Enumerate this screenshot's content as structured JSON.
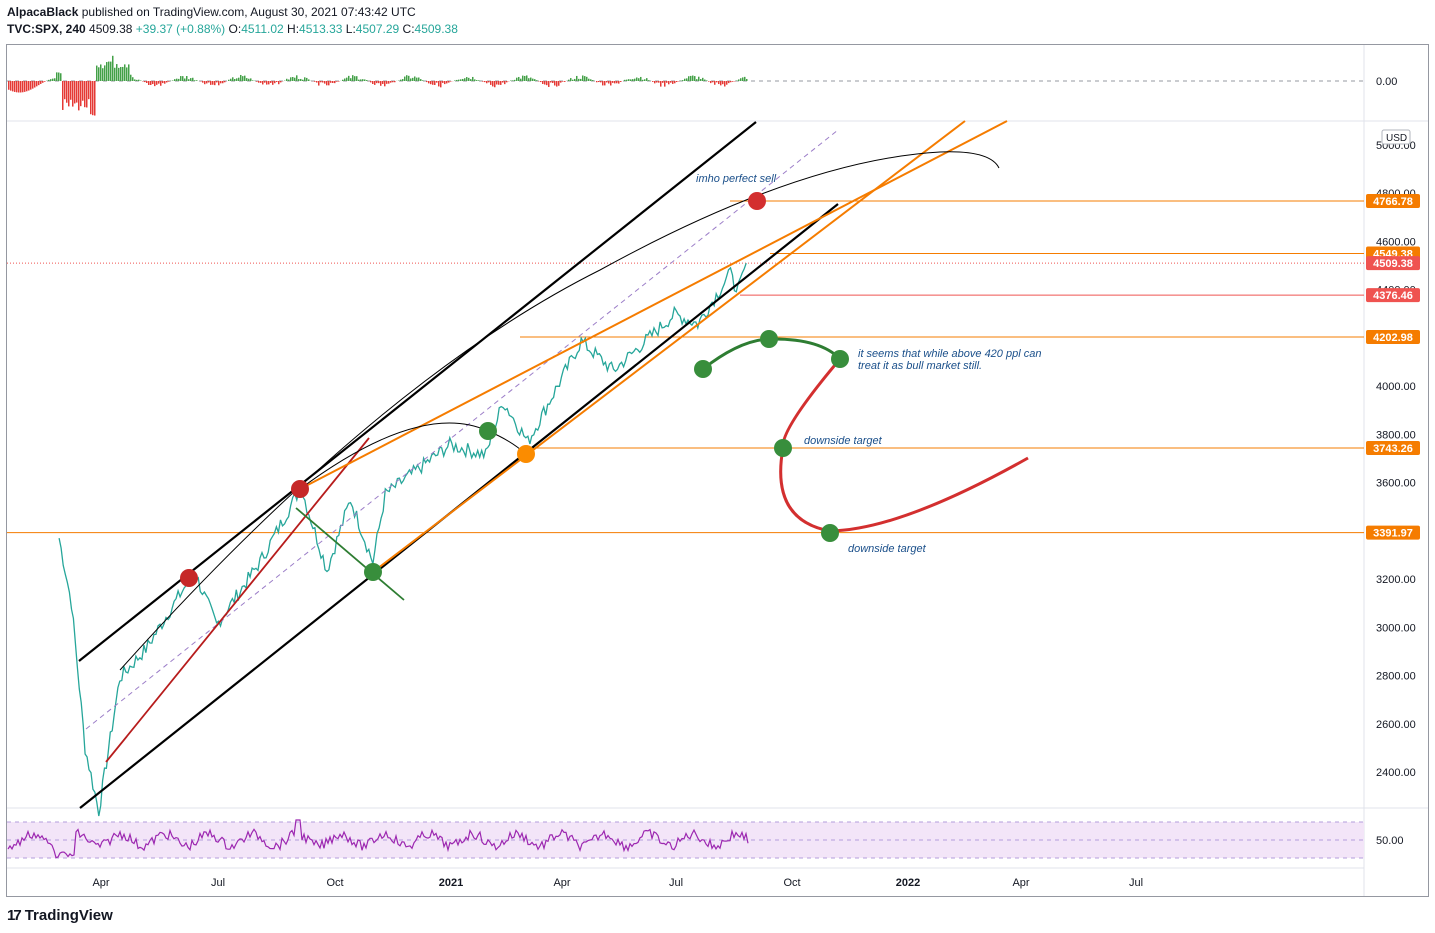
{
  "header": {
    "author": "AlpacaBlack",
    "published_text": "published on TradingView.com, August 30, 2021 07:43:42 UTC",
    "symbol": "TVC:SPX, 240",
    "last": "4509.38",
    "change": "+39.37 (+0.88%)",
    "o_label": "O:",
    "o": "4511.02",
    "h_label": "H:",
    "h": "4513.33",
    "l_label": "L:",
    "l": "4507.29",
    "c_label": "C:",
    "c": "4509.38"
  },
  "footer": {
    "brand": "TradingView",
    "logo_text": "17"
  },
  "chart_data": {
    "type": "line",
    "currency": "USD",
    "y_axis_ticks": [
      "4800.00",
      "4600.00",
      "4400.00",
      "4200.00",
      "4000.00",
      "3800.00",
      "3600.00",
      "3400.00",
      "3200.00",
      "3000.00",
      "2800.00",
      "2600.00",
      "2400.00"
    ],
    "y_axis_top_label": "5000.00",
    "x_axis_ticks": [
      "Apr",
      "Jul",
      "Oct",
      "2021",
      "Apr",
      "Jul",
      "Oct",
      "2022",
      "Apr",
      "Jul"
    ],
    "price_labels": [
      {
        "value": 4766.78,
        "text": "4766.78",
        "color": "#f57c00"
      },
      {
        "value": 4549.38,
        "text": "4549.38",
        "color": "#f57c00"
      },
      {
        "value": 4509.38,
        "text": "4509.38",
        "color": "#ef5350"
      },
      {
        "value": 4376.46,
        "text": "4376.46",
        "color": "#ef5350"
      },
      {
        "value": 4202.98,
        "text": "4202.98",
        "color": "#f57c00"
      },
      {
        "value": 3743.26,
        "text": "3743.26",
        "color": "#f57c00"
      },
      {
        "value": 3391.97,
        "text": "3391.97",
        "color": "#f57c00"
      }
    ],
    "price_series": [
      {
        "t": "2020-02-20",
        "v": 3370
      },
      {
        "t": "2020-03-01",
        "v": 3100
      },
      {
        "t": "2020-03-12",
        "v": 2500
      },
      {
        "t": "2020-03-23",
        "v": 2237
      },
      {
        "t": "2020-04-09",
        "v": 2790
      },
      {
        "t": "2020-04-30",
        "v": 2910
      },
      {
        "t": "2020-06-08",
        "v": 3230
      },
      {
        "t": "2020-06-26",
        "v": 3010
      },
      {
        "t": "2020-07-31",
        "v": 3270
      },
      {
        "t": "2020-09-02",
        "v": 3580
      },
      {
        "t": "2020-09-23",
        "v": 3237
      },
      {
        "t": "2020-10-12",
        "v": 3530
      },
      {
        "t": "2020-10-30",
        "v": 3270
      },
      {
        "t": "2020-11-09",
        "v": 3550
      },
      {
        "t": "2020-12-31",
        "v": 3756
      },
      {
        "t": "2021-01-29",
        "v": 3714
      },
      {
        "t": "2021-02-12",
        "v": 3935
      },
      {
        "t": "2021-03-04",
        "v": 3768
      },
      {
        "t": "2021-04-16",
        "v": 4185
      },
      {
        "t": "2021-05-12",
        "v": 4063
      },
      {
        "t": "2021-06-30",
        "v": 4297
      },
      {
        "t": "2021-07-19",
        "v": 4258
      },
      {
        "t": "2021-08-16",
        "v": 4480
      },
      {
        "t": "2021-08-19",
        "v": 4370
      },
      {
        "t": "2021-08-27",
        "v": 4509
      }
    ],
    "osc_zero_label": "0.00",
    "rsi_label": "50.00",
    "annotations": [
      {
        "text": "imho perfect sell",
        "t": "2021-08-20",
        "v": 4790
      },
      {
        "text": "it seems that while above 420 ppl can",
        "t": "2021-11-10",
        "v": 4130
      },
      {
        "text": "treat it as bull market still.",
        "t": "2021-11-10",
        "v": 4083
      },
      {
        "text": "downside target",
        "t": "2021-10-04",
        "v": 3778
      },
      {
        "text": "downside target",
        "t": "2021-11-15",
        "v": 3332
      }
    ]
  }
}
